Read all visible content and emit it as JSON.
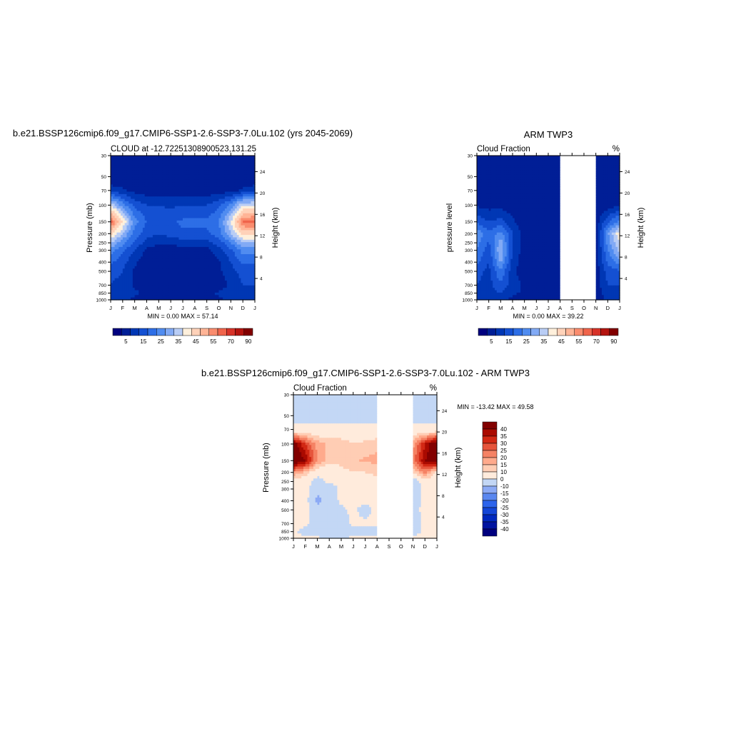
{
  "chart_data": [
    {
      "type": "heatmap",
      "title": "b.e21.BSSP126cmip6.f09_g17.CMIP6-SSP1-2.6-SSP3-7.0Lu.102 (yrs 2045-2069)",
      "left_string": "CLOUD at -12.72251308900523,131.25",
      "right_string": "%",
      "ylabel": "Pressure (mb)",
      "y2label": "Height (km)",
      "x_ticks": [
        "J",
        "F",
        "M",
        "A",
        "M",
        "J",
        "J",
        "A",
        "S",
        "O",
        "N",
        "D",
        "J"
      ],
      "y_ticks": [
        "30",
        "50",
        "70",
        "100",
        "150",
        "200",
        "250",
        "300",
        "400",
        "500",
        "700",
        "850",
        "1000"
      ],
      "y2_ticks": [
        "24",
        "20",
        "16",
        "12",
        "8",
        "4"
      ],
      "stats": "MIN =   0.00 MAX =  57.14",
      "colorbar_labels": [
        "5",
        "15",
        "25",
        "35",
        "45",
        "55",
        "70",
        "90"
      ],
      "ylim": [
        30,
        1000
      ],
      "yscale": "log-pressure",
      "x": [
        0,
        1,
        2,
        3,
        4,
        5,
        6,
        7,
        8,
        9,
        10,
        11,
        12
      ],
      "y": [
        30,
        50,
        70,
        100,
        150,
        200,
        250,
        300,
        400,
        500,
        700,
        850,
        1000
      ],
      "z": [
        [
          0,
          0,
          0,
          0,
          0,
          0,
          0,
          0,
          0,
          0,
          0,
          0,
          0
        ],
        [
          0,
          0,
          0,
          0,
          0,
          0,
          0,
          0,
          0,
          0,
          0,
          0,
          0
        ],
        [
          8,
          6,
          3,
          2,
          2,
          2,
          2,
          2,
          2,
          2,
          3,
          6,
          8
        ],
        [
          35,
          22,
          14,
          10,
          10,
          9,
          10,
          10,
          10,
          14,
          22,
          35,
          35
        ],
        [
          57,
          40,
          22,
          15,
          12,
          14,
          16,
          16,
          16,
          20,
          35,
          55,
          57
        ],
        [
          42,
          30,
          18,
          12,
          10,
          12,
          14,
          14,
          14,
          18,
          30,
          42,
          42
        ],
        [
          30,
          22,
          14,
          8,
          6,
          6,
          8,
          8,
          8,
          12,
          20,
          30,
          30
        ],
        [
          22,
          16,
          10,
          4,
          2,
          2,
          2,
          2,
          3,
          8,
          14,
          22,
          22
        ],
        [
          16,
          12,
          6,
          2,
          0,
          0,
          0,
          0,
          0,
          4,
          10,
          16,
          16
        ],
        [
          12,
          10,
          4,
          2,
          0,
          0,
          0,
          0,
          0,
          4,
          8,
          12,
          12
        ],
        [
          10,
          8,
          4,
          2,
          0,
          0,
          0,
          0,
          0,
          2,
          6,
          10,
          10
        ],
        [
          8,
          8,
          6,
          4,
          2,
          2,
          2,
          2,
          4,
          6,
          8,
          8,
          8
        ],
        [
          6,
          6,
          4,
          2,
          0,
          0,
          0,
          0,
          2,
          4,
          6,
          6,
          6
        ]
      ]
    },
    {
      "type": "heatmap",
      "title": "ARM TWP3",
      "left_string": "Cloud Fraction",
      "right_string": "%",
      "ylabel": "pressure level",
      "y2label": "Height (km)",
      "x_ticks": [
        "J",
        "F",
        "M",
        "A",
        "M",
        "J",
        "J",
        "A",
        "S",
        "O",
        "N",
        "D",
        "J"
      ],
      "y_ticks": [
        "30",
        "50",
        "70",
        "100",
        "150",
        "200",
        "250",
        "300",
        "400",
        "500",
        "700",
        "850",
        "1000"
      ],
      "y2_ticks": [
        "24",
        "20",
        "16",
        "12",
        "8",
        "4"
      ],
      "stats": "MIN =   0.00 MAX =  39.22",
      "colorbar_labels": [
        "5",
        "15",
        "25",
        "35",
        "45",
        "55",
        "70",
        "90"
      ],
      "missing_months": [
        "S",
        "O"
      ],
      "ylim": [
        30,
        1000
      ],
      "yscale": "log-pressure",
      "x": [
        0,
        1,
        2,
        3,
        4,
        5,
        6,
        7,
        8,
        9,
        10,
        11,
        12
      ],
      "y": [
        30,
        50,
        70,
        100,
        150,
        200,
        250,
        300,
        400,
        500,
        700,
        850,
        1000
      ],
      "z": [
        [
          0,
          0,
          0,
          0,
          0,
          0,
          0,
          0,
          null,
          null,
          0,
          0,
          0
        ],
        [
          0,
          0,
          0,
          0,
          0,
          0,
          0,
          0,
          null,
          null,
          0,
          0,
          0
        ],
        [
          0,
          0,
          0,
          0,
          0,
          0,
          0,
          0,
          null,
          null,
          0,
          0,
          0
        ],
        [
          4,
          3,
          3,
          2,
          0,
          0,
          0,
          0,
          null,
          null,
          0,
          2,
          4
        ],
        [
          14,
          10,
          12,
          6,
          2,
          0,
          0,
          0,
          null,
          null,
          2,
          14,
          22
        ],
        [
          24,
          16,
          22,
          10,
          2,
          0,
          0,
          0,
          null,
          null,
          2,
          24,
          39
        ],
        [
          22,
          14,
          28,
          10,
          2,
          0,
          0,
          0,
          null,
          null,
          2,
          22,
          35
        ],
        [
          20,
          12,
          30,
          10,
          2,
          0,
          0,
          0,
          null,
          null,
          2,
          20,
          32
        ],
        [
          16,
          10,
          26,
          8,
          2,
          0,
          0,
          0,
          null,
          null,
          2,
          16,
          22
        ],
        [
          12,
          8,
          20,
          6,
          2,
          0,
          0,
          0,
          null,
          null,
          2,
          12,
          14
        ],
        [
          10,
          8,
          14,
          8,
          4,
          0,
          0,
          0,
          null,
          null,
          2,
          10,
          10
        ],
        [
          8,
          8,
          10,
          6,
          4,
          2,
          0,
          0,
          null,
          null,
          2,
          8,
          8
        ],
        [
          6,
          6,
          6,
          4,
          2,
          0,
          0,
          0,
          null,
          null,
          2,
          6,
          6
        ]
      ]
    },
    {
      "type": "heatmap",
      "title": "b.e21.BSSP126cmip6.f09_g17.CMIP6-SSP1-2.6-SSP3-7.0Lu.102 - ARM TWP3",
      "left_string": "Cloud Fraction",
      "right_string": "%",
      "ylabel": "Pressure (mb)",
      "y2label": "Height (km)",
      "x_ticks": [
        "J",
        "F",
        "M",
        "A",
        "M",
        "J",
        "J",
        "A",
        "S",
        "O",
        "N",
        "D",
        "J"
      ],
      "y_ticks": [
        "30",
        "50",
        "70",
        "100",
        "150",
        "200",
        "250",
        "300",
        "400",
        "500",
        "700",
        "850",
        "1000"
      ],
      "y2_ticks": [
        "24",
        "20",
        "16",
        "12",
        "8",
        "4"
      ],
      "stats": "MIN = -13.42 MAX =  49.58",
      "colorbar_labels": [
        "40",
        "35",
        "30",
        "25",
        "20",
        "15",
        "10",
        "0",
        "-10",
        "-15",
        "-20",
        "-25",
        "-30",
        "-35",
        "-40"
      ],
      "missing_months": [
        "S",
        "O"
      ],
      "ylim": [
        30,
        1000
      ],
      "yscale": "log-pressure",
      "x": [
        0,
        1,
        2,
        3,
        4,
        5,
        6,
        7,
        8,
        9,
        10,
        11,
        12
      ],
      "y": [
        30,
        50,
        70,
        100,
        150,
        200,
        250,
        300,
        400,
        500,
        700,
        850,
        1000
      ],
      "z": [
        [
          -5,
          -5,
          -5,
          -5,
          -5,
          -5,
          -5,
          -5,
          null,
          null,
          -5,
          -5,
          -5
        ],
        [
          -5,
          -5,
          -5,
          -5,
          -5,
          -5,
          -5,
          -5,
          null,
          null,
          -5,
          -5,
          -5
        ],
        [
          3,
          3,
          3,
          3,
          3,
          3,
          3,
          3,
          null,
          null,
          3,
          3,
          3
        ],
        [
          45,
          30,
          18,
          14,
          14,
          10,
          12,
          14,
          null,
          null,
          18,
          35,
          49
        ],
        [
          49,
          40,
          20,
          12,
          12,
          14,
          16,
          16,
          null,
          null,
          22,
          40,
          45
        ],
        [
          20,
          14,
          4,
          3,
          8,
          10,
          10,
          12,
          null,
          null,
          10,
          22,
          8
        ],
        [
          6,
          4,
          -4,
          2,
          4,
          6,
          6,
          6,
          null,
          null,
          -8,
          6,
          4
        ],
        [
          2,
          4,
          -8,
          -6,
          2,
          2,
          2,
          2,
          null,
          null,
          -6,
          2,
          2
        ],
        [
          2,
          4,
          -13,
          -6,
          2,
          2,
          2,
          4,
          null,
          null,
          -4,
          2,
          2
        ],
        [
          2,
          4,
          -6,
          -6,
          -2,
          2,
          -4,
          4,
          null,
          null,
          -2,
          2,
          2
        ],
        [
          4,
          2,
          -6,
          -6,
          -4,
          2,
          2,
          2,
          null,
          null,
          -6,
          2,
          4
        ],
        [
          2,
          -4,
          -6,
          -4,
          -4,
          -4,
          -2,
          -4,
          null,
          null,
          -4,
          2,
          2
        ],
        [
          2,
          2,
          2,
          -4,
          -2,
          2,
          2,
          2,
          null,
          null,
          2,
          2,
          2
        ]
      ]
    }
  ],
  "palettes": {
    "seq": [
      "#00007f",
      "#001e96",
      "#0037b4",
      "#1450d2",
      "#2d6ee6",
      "#508cf0",
      "#82aaf5",
      "#b9cdf5",
      "#fff0dc",
      "#ffd2b9",
      "#ffb496",
      "#fa8c6e",
      "#f0644b",
      "#d73228",
      "#b4140f",
      "#820000"
    ],
    "diff": [
      "#00007f",
      "#0014a0",
      "#0028be",
      "#1446d7",
      "#2d64eb",
      "#5a87f0",
      "#8caaf5",
      "#c3d7f5",
      "#ffebdc",
      "#ffcdb4",
      "#ffaa8c",
      "#f58264",
      "#e6553c",
      "#d22814",
      "#aa0a00",
      "#820000"
    ]
  },
  "panel_labels": {
    "title_a": "b.e21.BSSP126cmip6.f09_g17.CMIP6-SSP1-2.6-SSP3-7.0Lu.102 (yrs 2045-2069)",
    "title_b": "ARM TWP3",
    "title_c": "b.e21.BSSP126cmip6.f09_g17.CMIP6-SSP1-2.6-SSP3-7.0Lu.102 - ARM TWP3",
    "left_a": "CLOUD at -12.72251308900523,131.25",
    "left_b": "Cloud Fraction",
    "left_c": "Cloud Fraction",
    "right_b": "%",
    "right_c": "%",
    "ylabel_a": "Pressure (mb)",
    "ylabel_b": "pressure level",
    "ylabel_c": "Pressure (mb)",
    "y2label": "Height (km)",
    "stats_a": "MIN =   0.00 MAX =  57.14",
    "stats_b": "MIN =   0.00 MAX =  39.22",
    "stats_c": "MIN = -13.42 MAX =  49.58"
  }
}
